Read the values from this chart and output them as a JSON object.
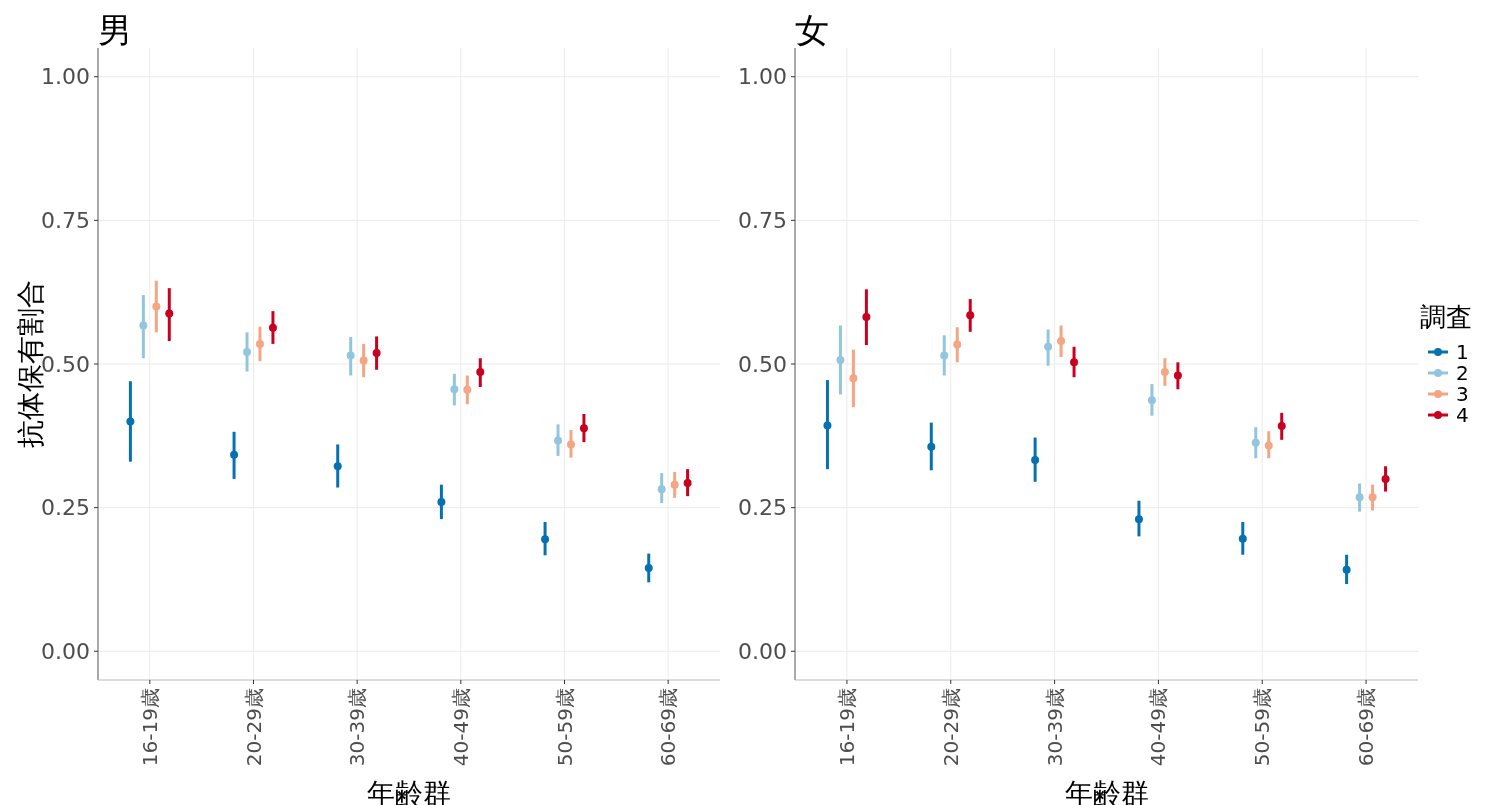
{
  "chart_data": [
    {
      "type": "scatter",
      "title": "男",
      "xlabel": "年齢群",
      "ylabel": "抗体保有割合",
      "categories": [
        "16-19歳",
        "20-29歳",
        "30-39歳",
        "40-49歳",
        "50-59歳",
        "60-69歳"
      ],
      "ylim": [
        -0.05,
        1.05
      ],
      "yticks": [
        {
          "value": 0,
          "label": "0.00"
        },
        {
          "value": 0.25,
          "label": "0.25"
        },
        {
          "value": 0.5,
          "label": "0.50"
        },
        {
          "value": 0.75,
          "label": "0.75"
        },
        {
          "value": 1,
          "label": "1.00"
        }
      ],
      "grid": true,
      "marker": "circle",
      "legend": false,
      "series": [
        {
          "color": "#0571b0",
          "values": [
            0.4,
            0.342,
            0.322,
            0.26,
            0.195,
            0.145
          ],
          "errors": [
            [
              0.33,
              0.47
            ],
            [
              0.3,
              0.382
            ],
            [
              0.285,
              0.36
            ],
            [
              0.23,
              0.29
            ],
            [
              0.167,
              0.225
            ],
            [
              0.12,
              0.17
            ]
          ]
        },
        {
          "color": "#92c5de",
          "values": [
            0.567,
            0.521,
            0.515,
            0.456,
            0.367,
            0.282
          ],
          "errors": [
            [
              0.51,
              0.62
            ],
            [
              0.487,
              0.555
            ],
            [
              0.48,
              0.547
            ],
            [
              0.428,
              0.483
            ],
            [
              0.34,
              0.395
            ],
            [
              0.258,
              0.31
            ]
          ]
        },
        {
          "color": "#f4a582",
          "values": [
            0.6,
            0.535,
            0.506,
            0.455,
            0.36,
            0.29
          ],
          "errors": [
            [
              0.555,
              0.645
            ],
            [
              0.505,
              0.565
            ],
            [
              0.477,
              0.535
            ],
            [
              0.43,
              0.48
            ],
            [
              0.337,
              0.385
            ],
            [
              0.267,
              0.312
            ]
          ]
        },
        {
          "color": "#ca0020",
          "values": [
            0.588,
            0.563,
            0.519,
            0.486,
            0.388,
            0.293
          ],
          "errors": [
            [
              0.54,
              0.632
            ],
            [
              0.535,
              0.592
            ],
            [
              0.49,
              0.548
            ],
            [
              0.46,
              0.51
            ],
            [
              0.364,
              0.413
            ],
            [
              0.27,
              0.317
            ]
          ]
        }
      ]
    },
    {
      "type": "scatter",
      "title": "女",
      "xlabel": "年齢群",
      "legend_title": "調査",
      "categories": [
        "16-19歳",
        "20-29歳",
        "30-39歳",
        "40-49歳",
        "50-59歳",
        "60-69歳"
      ],
      "ylim": [
        -0.05,
        1.05
      ],
      "yticks": [
        {
          "value": 0,
          "label": "0.00"
        },
        {
          "value": 0.25,
          "label": "0.25"
        },
        {
          "value": 0.5,
          "label": "0.50"
        },
        {
          "value": 0.75,
          "label": "0.75"
        },
        {
          "value": 1,
          "label": "1.00"
        }
      ],
      "grid": true,
      "marker": "circle",
      "legend": "right",
      "series": [
        {
          "name": "1",
          "color": "#0571b0",
          "values": [
            0.393,
            0.356,
            0.333,
            0.23,
            0.196,
            0.142
          ],
          "errors": [
            [
              0.317,
              0.472
            ],
            [
              0.315,
              0.398
            ],
            [
              0.295,
              0.372
            ],
            [
              0.2,
              0.262
            ],
            [
              0.168,
              0.225
            ],
            [
              0.117,
              0.168
            ]
          ]
        },
        {
          "name": "2",
          "color": "#92c5de",
          "values": [
            0.507,
            0.515,
            0.53,
            0.437,
            0.363,
            0.268
          ],
          "errors": [
            [
              0.447,
              0.567
            ],
            [
              0.48,
              0.55
            ],
            [
              0.497,
              0.56
            ],
            [
              0.41,
              0.465
            ],
            [
              0.336,
              0.39
            ],
            [
              0.243,
              0.292
            ]
          ]
        },
        {
          "name": "3",
          "color": "#f4a582",
          "values": [
            0.475,
            0.534,
            0.54,
            0.486,
            0.358,
            0.268
          ],
          "errors": [
            [
              0.425,
              0.525
            ],
            [
              0.503,
              0.564
            ],
            [
              0.512,
              0.567
            ],
            [
              0.462,
              0.51
            ],
            [
              0.336,
              0.383
            ],
            [
              0.245,
              0.29
            ]
          ]
        },
        {
          "name": "4",
          "color": "#ca0020",
          "values": [
            0.582,
            0.585,
            0.503,
            0.48,
            0.392,
            0.3
          ],
          "errors": [
            [
              0.533,
              0.63
            ],
            [
              0.556,
              0.613
            ],
            [
              0.477,
              0.53
            ],
            [
              0.456,
              0.503
            ],
            [
              0.368,
              0.415
            ],
            [
              0.278,
              0.322
            ]
          ]
        }
      ]
    }
  ]
}
